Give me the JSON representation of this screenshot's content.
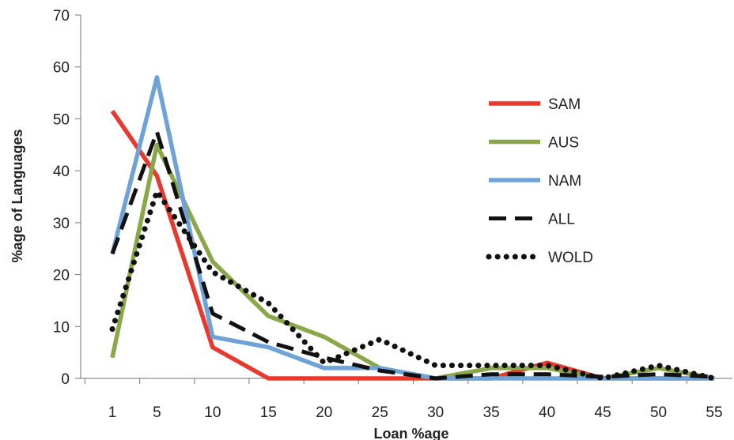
{
  "chart_data": {
    "type": "line",
    "title": "",
    "xlabel": "Loan %age",
    "ylabel": "%age of Languages",
    "x": [
      1,
      5,
      10,
      15,
      20,
      25,
      30,
      35,
      40,
      45,
      50,
      55
    ],
    "xticks": [
      "1",
      "5",
      "10",
      "15",
      "20",
      "25",
      "30",
      "35",
      "40",
      "45",
      "50",
      "55"
    ],
    "yticks": [
      0,
      10,
      20,
      30,
      40,
      50,
      60,
      70
    ],
    "ylim": [
      0,
      70
    ],
    "grid": false,
    "legend_position": "right",
    "series": [
      {
        "name": "SAM",
        "color": "#e8392f",
        "style": "solid",
        "values": [
          51.5,
          39,
          6,
          0,
          0,
          0,
          0,
          0,
          3,
          0,
          0,
          0
        ]
      },
      {
        "name": "AUS",
        "color": "#8aa84a",
        "style": "solid",
        "values": [
          4,
          45,
          22.5,
          12,
          8,
          2,
          0,
          2,
          2,
          0,
          2,
          0
        ]
      },
      {
        "name": "NAM",
        "color": "#6fa3d8",
        "style": "solid",
        "values": [
          24,
          58,
          8,
          6,
          2,
          2,
          0,
          0,
          0,
          0,
          0,
          0
        ]
      },
      {
        "name": "ALL",
        "color": "#111111",
        "style": "dashed",
        "values": [
          24,
          47.5,
          12.5,
          7,
          4,
          1.5,
          0,
          0.8,
          0.8,
          0.3,
          0.8,
          0.3
        ]
      },
      {
        "name": "WOLD",
        "color": "#111111",
        "style": "dotted",
        "values": [
          9.5,
          36,
          20.5,
          14.5,
          3,
          7.5,
          2.5,
          2.5,
          2.5,
          0,
          2.5,
          0
        ]
      }
    ]
  }
}
